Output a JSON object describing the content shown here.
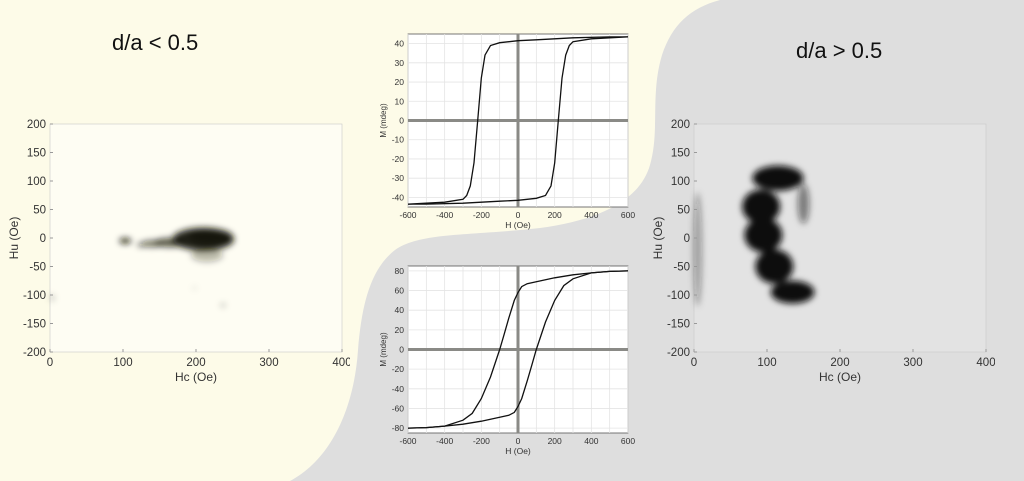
{
  "colors": {
    "left_bg": "#fdfbe8",
    "right_bg": "#dedede",
    "axis_text": "#333333",
    "grid": "#e4e4e4",
    "zero_line": "#8a8a86",
    "curve": "#111111",
    "forc_left": "#141407",
    "forc_right": "#111111"
  },
  "titles": {
    "left": "d/a < 0.5",
    "right": "d/a > 0.5"
  },
  "chart_data": [
    {
      "id": "forc-left",
      "type": "heatmap",
      "xlabel": "Hc (Oe)",
      "ylabel": "Hu (Oe)",
      "xlim": [
        0,
        400
      ],
      "ylim": [
        -200,
        200
      ],
      "xticks": [
        0,
        100,
        200,
        300,
        400
      ],
      "yticks": [
        200,
        150,
        100,
        50,
        0,
        -50,
        -100,
        -150,
        -200
      ],
      "grid": false,
      "blobs": [
        {
          "x": 210,
          "y": -2,
          "rx": 42,
          "ry": 20,
          "density": 0.95
        },
        {
          "x": 220,
          "y": 2,
          "rx": 30,
          "ry": 14,
          "density": 1
        },
        {
          "x": 165,
          "y": -8,
          "rx": 22,
          "ry": 8,
          "density": 0.7
        },
        {
          "x": 140,
          "y": -10,
          "rx": 14,
          "ry": 6,
          "density": 0.6
        },
        {
          "x": 103,
          "y": -5,
          "rx": 8,
          "ry": 5,
          "density": 0.9
        },
        {
          "x": 125,
          "y": -12,
          "rx": 6,
          "ry": 4,
          "density": 0.5
        },
        {
          "x": 215,
          "y": -30,
          "rx": 22,
          "ry": 12,
          "density": 0.3
        },
        {
          "x": 3,
          "y": -105,
          "rx": 3,
          "ry": 6,
          "density": 0.25
        },
        {
          "x": 237,
          "y": -118,
          "rx": 3,
          "ry": 3,
          "density": 0.35
        },
        {
          "x": 198,
          "y": -88,
          "rx": 2,
          "ry": 2,
          "density": 0.25
        }
      ]
    },
    {
      "id": "forc-right",
      "type": "heatmap",
      "xlabel": "Hc (Oe)",
      "ylabel": "Hu (Oe)",
      "xlim": [
        0,
        400
      ],
      "ylim": [
        -200,
        200
      ],
      "xticks": [
        0,
        100,
        200,
        300,
        400
      ],
      "yticks": [
        200,
        150,
        100,
        50,
        0,
        -50,
        -100,
        -150,
        -200
      ],
      "grid": false,
      "blobs": [
        {
          "x": 115,
          "y": 105,
          "rx": 35,
          "ry": 22,
          "density": 1
        },
        {
          "x": 92,
          "y": 55,
          "rx": 26,
          "ry": 30,
          "density": 1
        },
        {
          "x": 95,
          "y": 5,
          "rx": 26,
          "ry": 30,
          "density": 1
        },
        {
          "x": 110,
          "y": -50,
          "rx": 26,
          "ry": 30,
          "density": 1
        },
        {
          "x": 135,
          "y": -95,
          "rx": 30,
          "ry": 20,
          "density": 1
        },
        {
          "x": 150,
          "y": 60,
          "rx": 8,
          "ry": 35,
          "density": 0.5
        },
        {
          "x": 5,
          "y": -20,
          "rx": 6,
          "ry": 100,
          "density": 0.35
        }
      ]
    },
    {
      "id": "hysteresis-top",
      "type": "line",
      "xlabel": "H (Oe)",
      "ylabel": "M (mdeg)",
      "xlim": [
        -600,
        600
      ],
      "ylim": [
        -45,
        45
      ],
      "xticks": [
        -600,
        -400,
        -200,
        0,
        200,
        400,
        600
      ],
      "yticks": [
        40,
        30,
        20,
        10,
        0,
        -10,
        -20,
        -30,
        -40
      ],
      "grid": true,
      "series": [
        {
          "x": [
            600,
            500,
            300,
            200,
            100,
            0,
            -100,
            -150,
            -180,
            -200,
            -220,
            -240,
            -260,
            -280,
            -300,
            -400,
            -500,
            -600
          ],
          "values": [
            43.5,
            43.5,
            43,
            42.5,
            42,
            41.5,
            40.5,
            39,
            34,
            22,
            0,
            -22,
            -34,
            -39,
            -41,
            -42.5,
            -43,
            -43.5
          ]
        },
        {
          "x": [
            -600,
            -500,
            -300,
            -200,
            -100,
            0,
            100,
            150,
            180,
            200,
            220,
            240,
            260,
            280,
            300,
            400,
            500,
            600
          ],
          "values": [
            -43.5,
            -43.5,
            -43,
            -42.5,
            -42,
            -41.5,
            -40.5,
            -39,
            -34,
            -22,
            0,
            22,
            34,
            39,
            41,
            42.5,
            43,
            43.5
          ]
        }
      ]
    },
    {
      "id": "hysteresis-bottom",
      "type": "line",
      "xlabel": "H (Oe)",
      "ylabel": "M (mdeg)",
      "xlim": [
        -600,
        600
      ],
      "ylim": [
        -85,
        85
      ],
      "xticks": [
        -600,
        -400,
        -200,
        0,
        200,
        400,
        600
      ],
      "yticks": [
        80,
        60,
        40,
        20,
        0,
        -20,
        -40,
        -60,
        -80
      ],
      "grid": true,
      "series": [
        {
          "x": [
            600,
            500,
            400,
            300,
            200,
            150,
            100,
            50,
            20,
            0,
            -20,
            -50,
            -75,
            -100,
            -150,
            -200,
            -250,
            -300,
            -400,
            -500,
            -600
          ],
          "values": [
            80,
            79.5,
            78,
            76,
            73,
            71,
            69,
            67,
            64,
            58,
            50,
            32,
            16,
            0,
            -28,
            -50,
            -65,
            -72,
            -78,
            -79.5,
            -80
          ]
        },
        {
          "x": [
            -600,
            -500,
            -400,
            -300,
            -200,
            -150,
            -100,
            -50,
            -20,
            0,
            20,
            50,
            75,
            100,
            150,
            200,
            250,
            300,
            400,
            500,
            600
          ],
          "values": [
            -80,
            -79.5,
            -78,
            -76,
            -73,
            -71,
            -69,
            -67,
            -64,
            -58,
            -50,
            -32,
            -16,
            0,
            28,
            50,
            65,
            72,
            78,
            79.5,
            80
          ]
        }
      ]
    }
  ]
}
